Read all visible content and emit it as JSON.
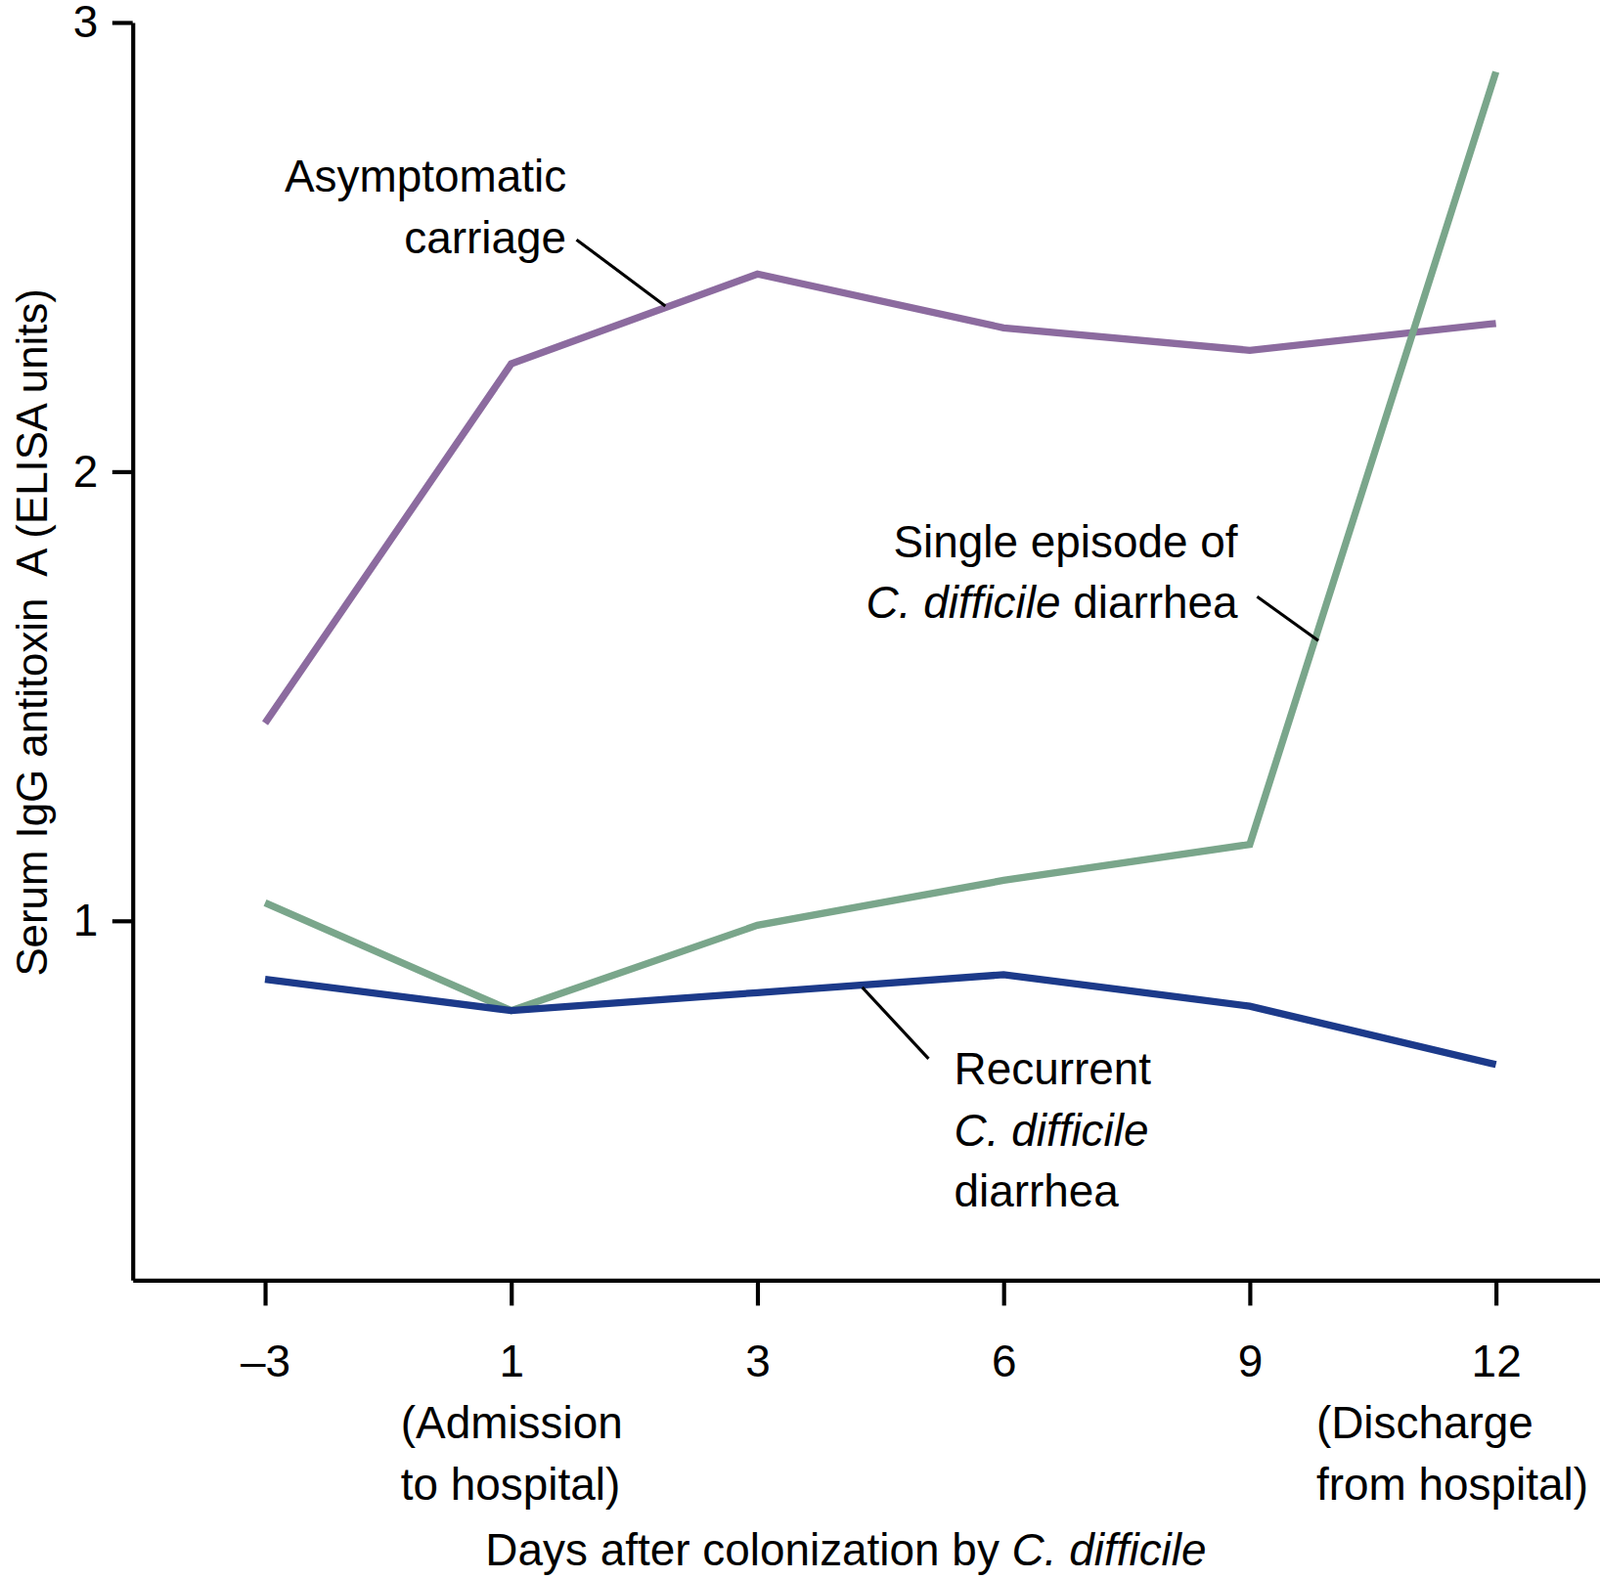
{
  "chart_data": {
    "type": "line",
    "categories": [
      "–3",
      "1\n(Admission\nto hospital)",
      "3",
      "6",
      "9",
      "12\n(Discharge\nfrom hospital)"
    ],
    "x_label": "Days after colonization by C. difficile",
    "y_label": "Serum IgG antitoxin  A (ELISA units)",
    "ylim": [
      0.2,
      3
    ],
    "yticks": [
      1,
      2,
      3
    ],
    "series": [
      {
        "name": "Asymptomatic\ncarriage",
        "color": "#8c6b9f",
        "values": [
          1.44,
          2.24,
          2.44,
          2.32,
          2.27,
          2.33
        ]
      },
      {
        "name": "Single episode of\nC. difficile diarrhea",
        "color": "#7aa68b",
        "values": [
          1.04,
          0.8,
          0.99,
          1.09,
          1.17,
          2.89
        ]
      },
      {
        "name": "Recurrent\nC. difficile\ndiarrhea",
        "color": "#1c3a8a",
        "values": [
          0.87,
          0.8,
          0.84,
          0.88,
          0.81,
          0.68
        ]
      }
    ]
  }
}
